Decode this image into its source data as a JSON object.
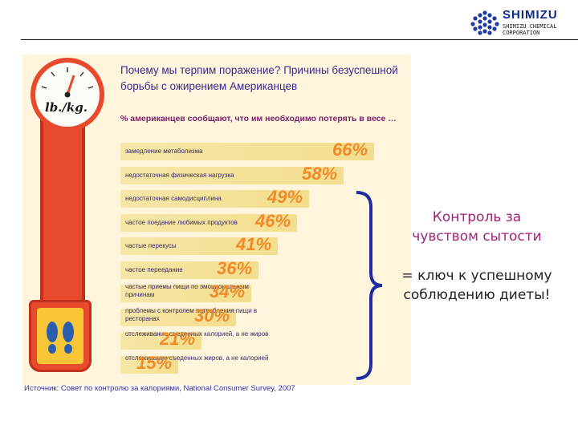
{
  "logo": {
    "name": "SHIMIZU",
    "line1": "SHIMIZU CHEMICAL",
    "line2": "CORPORATION"
  },
  "dial_label": "lb./kg.",
  "title": "Почему мы терпим поражение? Причины безуспешной борьбы с ожирением Американцев",
  "subtitle": "% американцев сообщают, что им  необходимо потерять в весе …",
  "chart_data": {
    "type": "bar",
    "categories": [
      "замедление метаболизма",
      "недостаточная физическая нагрузка",
      "недостаточная самодисциплина",
      "частое поедание любимых продуктов",
      "частые перекусы",
      "частое переедание",
      "частые приемы пищи по эмоциональным причинам",
      "проблемы с контролем потребления пищи в ресторанах",
      "отслеживание съеденных калорией, а не жиров",
      "отслеживание съеденных жиров, а не калорией"
    ],
    "values": [
      66,
      58,
      49,
      46,
      41,
      36,
      34,
      30,
      21,
      15
    ],
    "value_labels": [
      "66%",
      "58%",
      "49%",
      "46%",
      "41%",
      "36%",
      "34%",
      "30%",
      "21%",
      "15%"
    ],
    "title": "Почему мы терпим поражение? Причины безуспешной борьбы с ожирением Американцев",
    "ylim": [
      0,
      70
    ],
    "colors": {
      "bar": "#f3e19a",
      "value": "#f08a2a",
      "label": "#3b2a6b"
    }
  },
  "source": "Источник: Совет по контролю за калориями, National Consumer Survey, 2007",
  "conclusion": {
    "line1": "Контроль за чувством сытости",
    "line2": "= ключ к успешному соблюдению диеты!"
  },
  "colors": {
    "accent": "#a12279",
    "title": "#3a2a8f",
    "scale": "#e74a2d"
  }
}
